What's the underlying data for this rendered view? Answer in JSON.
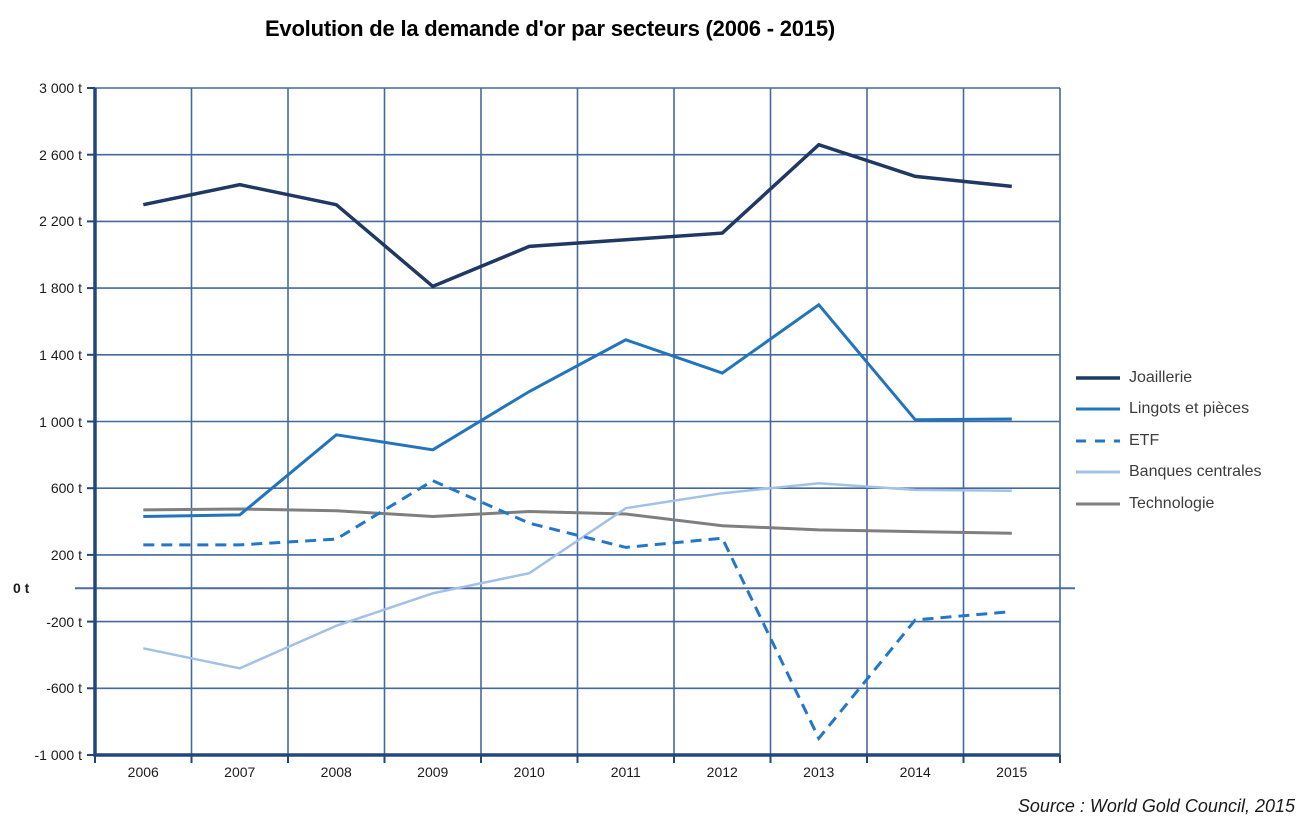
{
  "title": "Evolution de la demande d'or par secteurs (2006 - 2015)",
  "source": "Source :  World Gold Council, 2015",
  "colors": {
    "grid": "#44699c",
    "axis": "#24477b",
    "zero_line": "#4a6d9e",
    "text": "#1b1b1b",
    "legend_text": "#3d3d3d"
  },
  "chart_data": {
    "type": "line",
    "unit": "t",
    "categories": [
      "2006",
      "2007",
      "2008",
      "2009",
      "2010",
      "2011",
      "2012",
      "2013",
      "2014",
      "2015"
    ],
    "y_axis": {
      "min": -1000,
      "max": 3000,
      "step": 400,
      "tick_labels": [
        "3 000 t",
        "2 600 t",
        "2 200 t",
        "1 800 t",
        "1 400 t",
        "1 000 t",
        "600 t",
        "200 t",
        "-200 t",
        "-600 t",
        "-1 000 t"
      ],
      "zero_label": "0 t"
    },
    "grid": true,
    "legend_position": "right",
    "series": [
      {
        "key": "joaillerie",
        "name": "Joaillerie",
        "color": "#1F3864",
        "width": 3.5,
        "dash": null,
        "values": [
          2300,
          2420,
          2300,
          1810,
          2050,
          2090,
          2130,
          2660,
          2470,
          2410
        ]
      },
      {
        "key": "lingots-et-pieces",
        "name": "Lingots et pièces",
        "color": "#2274BC",
        "width": 3,
        "dash": null,
        "values": [
          430,
          440,
          920,
          830,
          1180,
          1490,
          1290,
          1700,
          1010,
          1015
        ]
      },
      {
        "key": "etf",
        "name": "ETF",
        "color": "#2377C8",
        "width": 3,
        "dash": "11 7",
        "values": [
          260,
          260,
          295,
          645,
          390,
          245,
          300,
          -900,
          -190,
          -140
        ]
      },
      {
        "key": "banques-centrales",
        "name": "Banques centrales",
        "color": "#A3C1E6",
        "width": 2.5,
        "dash": null,
        "values": [
          -360,
          -480,
          -225,
          -30,
          90,
          480,
          570,
          630,
          590,
          585
        ]
      },
      {
        "key": "technologie",
        "name": "Technologie",
        "color": "#7F7F7F",
        "width": 3,
        "dash": null,
        "values": [
          470,
          475,
          465,
          430,
          460,
          445,
          375,
          350,
          340,
          330
        ]
      }
    ]
  }
}
